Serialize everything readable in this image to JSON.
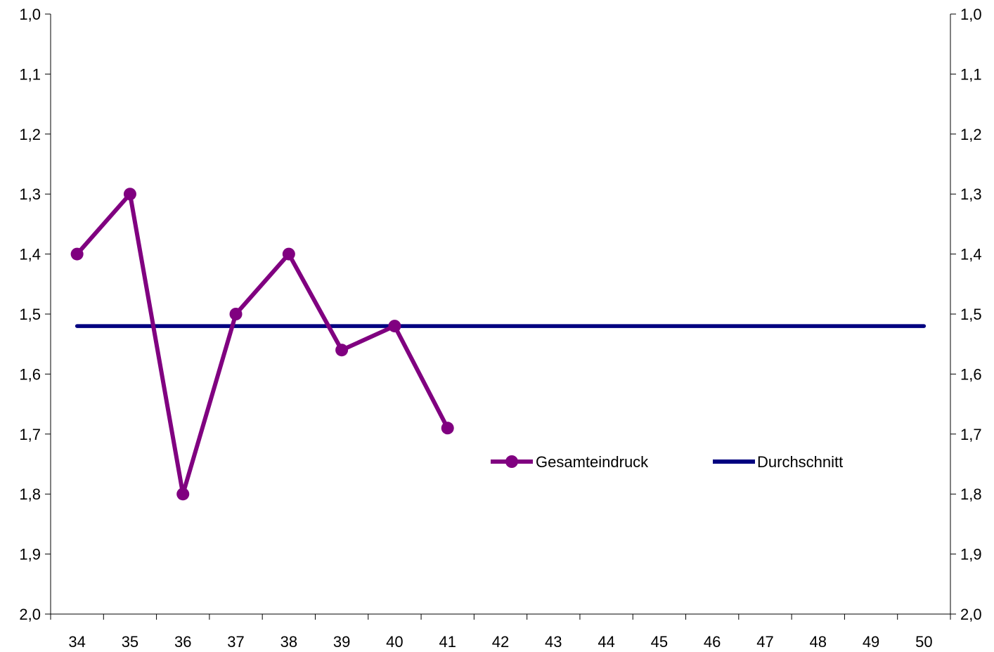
{
  "chart_data": {
    "type": "line",
    "x": [
      34,
      35,
      36,
      37,
      38,
      39,
      40,
      41,
      42,
      43,
      44,
      45,
      46,
      47,
      48,
      49,
      50
    ],
    "x_tick_labels": [
      "34",
      "35",
      "36",
      "37",
      "38",
      "39",
      "40",
      "41",
      "42",
      "43",
      "44",
      "45",
      "46",
      "47",
      "48",
      "49",
      "50"
    ],
    "y_tick_labels": [
      "1,0",
      "1,1",
      "1,2",
      "1,3",
      "1,4",
      "1,5",
      "1,6",
      "1,7",
      "1,8",
      "1,9",
      "2,0"
    ],
    "y_ticks": [
      1.0,
      1.1,
      1.2,
      1.3,
      1.4,
      1.5,
      1.6,
      1.7,
      1.8,
      1.9,
      2.0
    ],
    "ylim": [
      1.0,
      2.0
    ],
    "y_inverted": true,
    "y_axis_right_mirror": true,
    "grid": false,
    "legend_position": "inside-right",
    "series": [
      {
        "name": "Gesamteindruck",
        "color": "#800080",
        "marker": "circle",
        "x": [
          34,
          35,
          36,
          37,
          38,
          39,
          40,
          41
        ],
        "values": [
          1.4,
          1.3,
          1.8,
          1.5,
          1.4,
          1.56,
          1.52,
          1.69
        ]
      },
      {
        "name": "Durchschnitt",
        "color": "#000080",
        "marker": "none",
        "x": [
          34,
          35,
          36,
          37,
          38,
          39,
          40,
          41,
          42,
          43,
          44,
          45,
          46,
          47,
          48,
          49,
          50
        ],
        "values": [
          1.52,
          1.52,
          1.52,
          1.52,
          1.52,
          1.52,
          1.52,
          1.52,
          1.52,
          1.52,
          1.52,
          1.52,
          1.52,
          1.52,
          1.52,
          1.52,
          1.52
        ]
      }
    ]
  }
}
